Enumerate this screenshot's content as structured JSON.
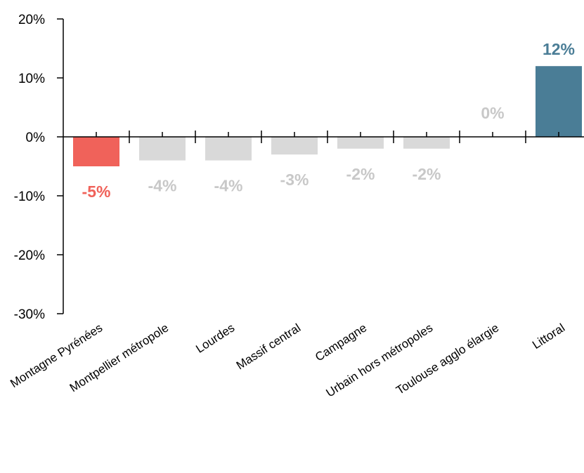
{
  "chart_data": {
    "type": "bar",
    "title": "",
    "xlabel": "",
    "ylabel": "",
    "ylim": [
      -30,
      20
    ],
    "y_ticks": [
      20,
      10,
      0,
      -10,
      -20,
      -30
    ],
    "y_tick_labels": [
      "20%",
      "10%",
      "0%",
      "-10%",
      "-20%",
      "-30%"
    ],
    "grid": false,
    "legend": "none",
    "categories": [
      "Montagne Pyrénées",
      "Montpellier métropole",
      "Lourdes",
      "Massif central",
      "Campagne",
      "Urbain hors métropoles",
      "Toulouse agglo élargie",
      "Littoral"
    ],
    "values": [
      -5,
      -4,
      -4,
      -3,
      -2,
      -2,
      0,
      12
    ],
    "data_labels": [
      "-5%",
      "-4%",
      "-4%",
      "-3%",
      "-2%",
      "-2%",
      "0%",
      "12%"
    ],
    "bar_colors": [
      "#f0625a",
      "#d9d9d9",
      "#d9d9d9",
      "#d9d9d9",
      "#d9d9d9",
      "#d9d9d9",
      "#d9d9d9",
      "#4a7d96"
    ],
    "label_colors": [
      "#f0625a",
      "#c8c8c8",
      "#c8c8c8",
      "#c8c8c8",
      "#c8c8c8",
      "#c8c8c8",
      "#c8c8c8",
      "#4a7d96"
    ]
  }
}
